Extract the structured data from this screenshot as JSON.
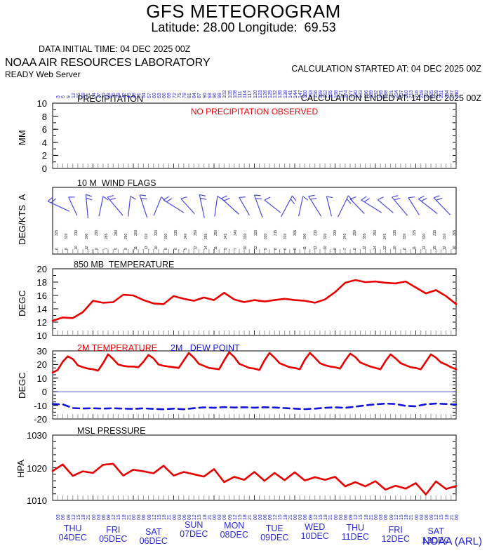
{
  "header": {
    "title": "GFS METEOROGRAM",
    "subtitle": "Latitude: 28.00 Longitude:  69.53",
    "data_initial_time": "DATA INITIAL TIME: 04 DEC 2025 00Z",
    "calc_started": "CALCULATION STARTED AT: 04 DEC 2025 00Z",
    "calc_ended": "CALCULATION ENDED AT: 14 DEC 2025 00Z",
    "organization": "NOAA AIR RESOURCES LABORATORY",
    "server": "READY Web Server",
    "credit": "NOAA (ARL)"
  },
  "colors": {
    "red_series": "#e80000",
    "blue_series": "#1414d6",
    "blue_text": "#2727cc",
    "barb_blue": "#4a4ade",
    "axis_black": "#000000",
    "minor_tick_gray": "#999999"
  },
  "x_axis": {
    "hours_range": [
      0,
      240
    ],
    "top_forecast_hour_labels": [
      "3",
      "6",
      "9",
      "12",
      "15",
      "18",
      "21",
      "24",
      "27",
      "30",
      "33",
      "36",
      "39",
      "42",
      "45",
      "48",
      "51",
      "54",
      "57",
      "60",
      "63",
      "66",
      "69",
      "72",
      "75",
      "78",
      "81",
      "84",
      "87",
      "90",
      "93",
      "96",
      "99",
      "102",
      "105",
      "108",
      "111",
      "114",
      "117",
      "120",
      "123",
      "126",
      "129",
      "132",
      "135",
      "138",
      "141",
      "144",
      "147",
      "150",
      "153",
      "156",
      "159",
      "162",
      "165",
      "168",
      "171",
      "174",
      "177",
      "180",
      "183",
      "186",
      "189",
      "192",
      "195",
      "198",
      "201",
      "204",
      "207",
      "210",
      "213",
      "216",
      "219",
      "222",
      "225",
      "228",
      "231",
      "234",
      "237",
      "240"
    ],
    "bottom_hour_labels": [
      "03",
      "06",
      "09",
      "12",
      "15",
      "18",
      "21",
      "00",
      "03",
      "06",
      "09",
      "12",
      "15",
      "18",
      "21",
      "00",
      "03",
      "06",
      "09",
      "12",
      "15",
      "18",
      "21",
      "00",
      "03",
      "06",
      "09",
      "12",
      "15",
      "18",
      "21",
      "00",
      "03",
      "06",
      "09",
      "12",
      "15",
      "18",
      "21",
      "00",
      "03",
      "06",
      "09",
      "12",
      "15",
      "18",
      "21",
      "00",
      "03",
      "06",
      "09",
      "12",
      "15",
      "18",
      "21",
      "00",
      "03",
      "06",
      "09",
      "12",
      "15",
      "18",
      "21",
      "00",
      "03",
      "06",
      "09",
      "12",
      "15",
      "18",
      "21",
      "00",
      "03",
      "06",
      "09",
      "12",
      "15",
      "18",
      "21",
      "00"
    ],
    "days": [
      {
        "dow": "THU",
        "date": "04DEC",
        "dy": 5
      },
      {
        "dow": "FRI",
        "date": "05DEC",
        "dy": 7
      },
      {
        "dow": "SAT",
        "date": "06DEC",
        "dy": 10
      },
      {
        "dow": "SUN",
        "date": "07DEC",
        "dy": 0
      },
      {
        "dow": "MON",
        "date": "08DEC",
        "dy": 1
      },
      {
        "dow": "TUE",
        "date": "09DEC",
        "dy": 5
      },
      {
        "dow": "WED",
        "date": "10DEC",
        "dy": 3
      },
      {
        "dow": "THU",
        "date": "11DEC",
        "dy": 4
      },
      {
        "dow": "FRI",
        "date": "12DEC",
        "dy": 7
      },
      {
        "dow": "SAT",
        "date": "13DEC",
        "dy": 9
      }
    ]
  },
  "chart_data": [
    {
      "id": "precipitation",
      "type": "line",
      "title": "PRECIPITATION",
      "ylabel": "MM",
      "ylim": [
        0,
        10
      ],
      "yticks": [
        0,
        2,
        4,
        6,
        8,
        10
      ],
      "annotation": "NO PRECIPITATION OBSERVED",
      "series": []
    },
    {
      "id": "wind_flags",
      "type": "wind-barbs",
      "title": "10 M  WIND FLAGS",
      "ylabel": "DEG/KTS  A",
      "barbs": [
        {
          "p": 0.015,
          "a": -65,
          "f": 2
        },
        {
          "p": 0.05,
          "a": -25,
          "f": 1
        },
        {
          "p": 0.085,
          "a": -5,
          "f": 2
        },
        {
          "p": 0.12,
          "a": 12,
          "f": 1
        },
        {
          "p": 0.155,
          "a": -40,
          "f": 2
        },
        {
          "p": 0.19,
          "a": 6,
          "f": 1
        },
        {
          "p": 0.225,
          "a": -18,
          "f": 2
        },
        {
          "p": 0.26,
          "a": 22,
          "f": 1
        },
        {
          "p": 0.3,
          "a": -58,
          "f": 2
        },
        {
          "p": 0.335,
          "a": -42,
          "f": 1
        },
        {
          "p": 0.37,
          "a": -12,
          "f": 2
        },
        {
          "p": 0.405,
          "a": 8,
          "f": 1
        },
        {
          "p": 0.44,
          "a": -48,
          "f": 2
        },
        {
          "p": 0.475,
          "a": -30,
          "f": 1
        },
        {
          "p": 0.51,
          "a": -20,
          "f": 2
        },
        {
          "p": 0.545,
          "a": -52,
          "f": 1
        },
        {
          "p": 0.58,
          "a": 28,
          "f": 2
        },
        {
          "p": 0.615,
          "a": 12,
          "f": 1
        },
        {
          "p": 0.65,
          "a": -32,
          "f": 2
        },
        {
          "p": 0.685,
          "a": -14,
          "f": 1
        },
        {
          "p": 0.72,
          "a": 26,
          "f": 2
        },
        {
          "p": 0.755,
          "a": -44,
          "f": 1
        },
        {
          "p": 0.79,
          "a": -58,
          "f": 2
        },
        {
          "p": 0.825,
          "a": -50,
          "f": 1
        },
        {
          "p": 0.86,
          "a": -40,
          "f": 2
        },
        {
          "p": 0.895,
          "a": -32,
          "f": 1
        },
        {
          "p": 0.93,
          "a": -52,
          "f": 2
        },
        {
          "p": 0.965,
          "a": -44,
          "f": 2
        }
      ],
      "directions": [
        "325",
        "320",
        "310",
        "300",
        "290",
        "285",
        "280",
        "290",
        "300",
        "310",
        "320",
        "330",
        "335",
        "340",
        "350",
        "355",
        "350",
        "345",
        "340",
        "330",
        "325",
        "320",
        "315",
        "310",
        "305",
        "300",
        "310",
        "320",
        "330",
        "340",
        "350",
        "355",
        "350",
        "345",
        "335",
        "330",
        "325",
        "320",
        "315",
        "310",
        "305"
      ],
      "speeds": [
        "6",
        "8",
        "10",
        "12",
        "9",
        "7",
        "5",
        "8",
        "11",
        "13",
        "10",
        "8",
        "6",
        "9",
        "12",
        "14",
        "11",
        "9",
        "7",
        "10",
        "12",
        "9",
        "8",
        "6",
        "9",
        "11",
        "13",
        "10",
        "8",
        "7",
        "9",
        "12",
        "14",
        "12",
        "10",
        "8",
        "11",
        "13",
        "15",
        "12",
        "10"
      ]
    },
    {
      "id": "t850",
      "type": "line",
      "title": "850 MB  TEMPERATURE",
      "ylabel": "DEGC",
      "ylim": [
        10,
        20
      ],
      "yticks": [
        10,
        12,
        14,
        16,
        18,
        20
      ],
      "series": [
        {
          "name": "850 MB TEMPERATURE",
          "color": "#e80000",
          "hours_step": 6,
          "values": [
            12.2,
            12.7,
            12.6,
            13.5,
            15.2,
            14.9,
            15.0,
            16.1,
            16.0,
            15.3,
            14.8,
            14.7,
            15.9,
            15.5,
            15.2,
            15.7,
            15.3,
            16.4,
            15.4,
            15.0,
            15.3,
            15.1,
            15.3,
            15.5,
            15.3,
            15.2,
            14.9,
            15.4,
            16.5,
            17.9,
            18.3,
            18.0,
            18.1,
            17.9,
            17.8,
            18.1,
            17.2,
            16.3,
            16.8,
            15.9,
            14.7
          ]
        }
      ]
    },
    {
      "id": "t2m",
      "type": "line",
      "title_red": "2M TEMPERATURE",
      "title_blue": "2M   DEW POINT",
      "ylabel": "DEGC",
      "ylim": [
        -20,
        30
      ],
      "yticks": [
        -20,
        -10,
        0,
        10,
        20,
        30
      ],
      "zero_line": true,
      "series": [
        {
          "name": "2M TEMPERATURE",
          "color": "#e80000",
          "hours_step": 3,
          "values": [
            14,
            16,
            22,
            26,
            24,
            19.5,
            18,
            17,
            16.5,
            15.5,
            21,
            27.5,
            24,
            20,
            19,
            18.5,
            18.5,
            18,
            22,
            27,
            24.5,
            20,
            19,
            18.5,
            18,
            17.5,
            23,
            28.5,
            25,
            20.5,
            19,
            17.5,
            17,
            16.5,
            23,
            29,
            25.5,
            20.5,
            19,
            17.5,
            17,
            16,
            23,
            28.5,
            25,
            21,
            19.5,
            18,
            17.5,
            16.5,
            23.5,
            28.5,
            25,
            21,
            19.5,
            18.5,
            18,
            17,
            23,
            28,
            25.5,
            21.5,
            20,
            18.5,
            17.5,
            16.5,
            22.5,
            27.5,
            24.5,
            21,
            19.5,
            18,
            17.5,
            16.5,
            22,
            27.5,
            25,
            21.5,
            20,
            18,
            16.5
          ]
        },
        {
          "name": "2M DEW POINT",
          "color": "#1414d6",
          "dashed": true,
          "hours_step": 6,
          "values": [
            -9,
            -9.3,
            -12,
            -12.3,
            -12.1,
            -12.4,
            -12.1,
            -12.4,
            -12.6,
            -12.2,
            -12.6,
            -12.9,
            -12.4,
            -12.9,
            -12.1,
            -11.5,
            -11.8,
            -11.3,
            -11.6,
            -11.4,
            -11.7,
            -11.4,
            -11.6,
            -12,
            -12.4,
            -12.8,
            -12.4,
            -11.8,
            -11.5,
            -11.8,
            -11,
            -10,
            -9.3,
            -8.7,
            -9,
            -10.4,
            -10.7,
            -9.2,
            -8.7,
            -9,
            -9.4
          ]
        }
      ]
    },
    {
      "id": "mslp",
      "type": "line",
      "title": "MSL PRESSURE",
      "ylabel": "HPA",
      "ylim": [
        1010,
        1030
      ],
      "yticks": [
        1010,
        1020,
        1030
      ],
      "series": [
        {
          "name": "MSL PRESSURE",
          "color": "#e80000",
          "hours_step": 6,
          "values": [
            1019.0,
            1021.0,
            1017.5,
            1018.9,
            1018.4,
            1020.9,
            1021.2,
            1017.6,
            1019.4,
            1018.9,
            1018.3,
            1020.6,
            1017.6,
            1018.7,
            1018.0,
            1017.3,
            1019.6,
            1015.6,
            1017.2,
            1016.3,
            1018.7,
            1016.0,
            1018.4,
            1016.2,
            1018.6,
            1016.1,
            1017.1,
            1016.3,
            1017.2,
            1014.3,
            1015.6,
            1014.3,
            1015.9,
            1013.3,
            1014.5,
            1013.6,
            1015.3,
            1011.8,
            1015.8,
            1013.5,
            1014.4
          ]
        }
      ]
    }
  ]
}
